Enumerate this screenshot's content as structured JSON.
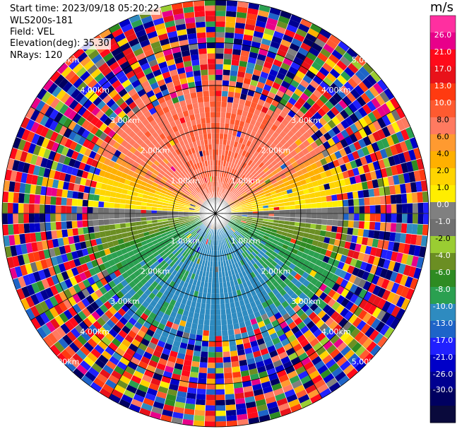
{
  "info": {
    "start_time": "Start time: 2023/09/18 05:20:22",
    "instrument": "WLS200s-181",
    "field": "Field: VEL",
    "elevation": "Elevation(deg): 35.30",
    "nrays": "NRays: 120"
  },
  "colorbar": {
    "unit": "m/s",
    "ticks": [
      "26.0",
      "21.0",
      "17.0",
      "13.0",
      "10.0",
      "8.0",
      "6.0",
      "4.0",
      "2.0",
      "1.0",
      "0.0",
      "-1.0",
      "-2.0",
      "-4.0",
      "-6.0",
      "-8.0",
      "-10.0",
      "-13.0",
      "-17.0",
      "-21.0",
      "-26.0",
      "-30.0"
    ],
    "colors": [
      "#ff2fa0",
      "#e8008a",
      "#ff0a1a",
      "#e8121a",
      "#ff3a10",
      "#ff5a30",
      "#ff7a60",
      "#ff9a30",
      "#ffb000",
      "#ffd400",
      "#ffee00",
      "#808080",
      "#707070",
      "#9acd32",
      "#6b8e23",
      "#2e8b22",
      "#2aa050",
      "#2e8bc0",
      "#1e64c8",
      "#2020ff",
      "#0000c8",
      "#000090",
      "#000060",
      "#0a0a3c"
    ]
  },
  "chart_data": {
    "type": "heatmap",
    "projection": "polar plan position indicator (radial velocity)",
    "field": "VEL",
    "units": "m/s",
    "nrays": 120,
    "elevation_deg": 35.3,
    "range_rings_km": [
      1.0,
      2.0,
      3.0,
      4.0,
      5.0
    ],
    "ring_labels": [
      "1.00km",
      "2.00km",
      "3.00km",
      "4.00km",
      "5.00km"
    ],
    "color_levels": [
      -30.0,
      -26.0,
      -21.0,
      -17.0,
      -13.0,
      -10.0,
      -8.0,
      -6.0,
      -4.0,
      -2.0,
      -1.0,
      0.0,
      1.0,
      2.0,
      4.0,
      6.0,
      8.0,
      10.0,
      13.0,
      17.0,
      21.0,
      26.0
    ],
    "pattern": {
      "north_sector_inner": "6 to 10 m/s (salmon)",
      "near_horizon_north": "1 to 4 m/s (yellow/orange)",
      "east_west_axis": "-1 to 1 m/s (grey)",
      "south_sector_inner": "-2 to -8 m/s (green to blue)",
      "beyond_3km": "noisy, random values"
    }
  }
}
